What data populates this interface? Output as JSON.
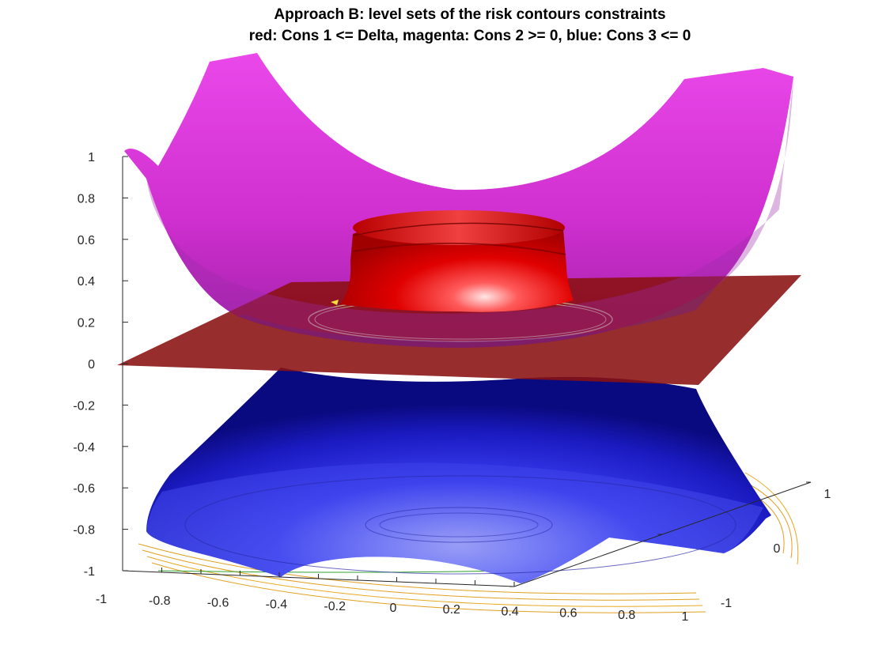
{
  "chart_data": {
    "type": "surface",
    "title": "Approach B: level sets of the risk contours constraints",
    "subtitle": "red: Cons 1 <= Delta, magenta: Cons 2 >= 0, blue: Cons 3 <= 0",
    "xlabel": "",
    "ylabel": "",
    "zlabel": "",
    "xlim": [
      -1,
      1
    ],
    "ylim": [
      -1,
      1
    ],
    "zlim": [
      -1,
      1
    ],
    "x_ticks": [
      "-1",
      "-0.8",
      "-0.6",
      "-0.4",
      "-0.2",
      "0",
      "0.2",
      "0.4",
      "0.6",
      "0.8",
      "1"
    ],
    "y_ticks": [
      "-1",
      "0",
      "1"
    ],
    "z_ticks": [
      "-1",
      "-0.8",
      "-0.6",
      "-0.4",
      "-0.2",
      "0",
      "0.2",
      "0.4",
      "0.6",
      "0.8",
      "1"
    ],
    "grid": false,
    "series": [
      {
        "name": "Cons 1 <= Delta",
        "color": "#e00000"
      },
      {
        "name": "Cons 2 >= 0",
        "color": "#e040e0"
      },
      {
        "name": "Cons 3 <= 0",
        "color": "#1010d0"
      }
    ]
  }
}
